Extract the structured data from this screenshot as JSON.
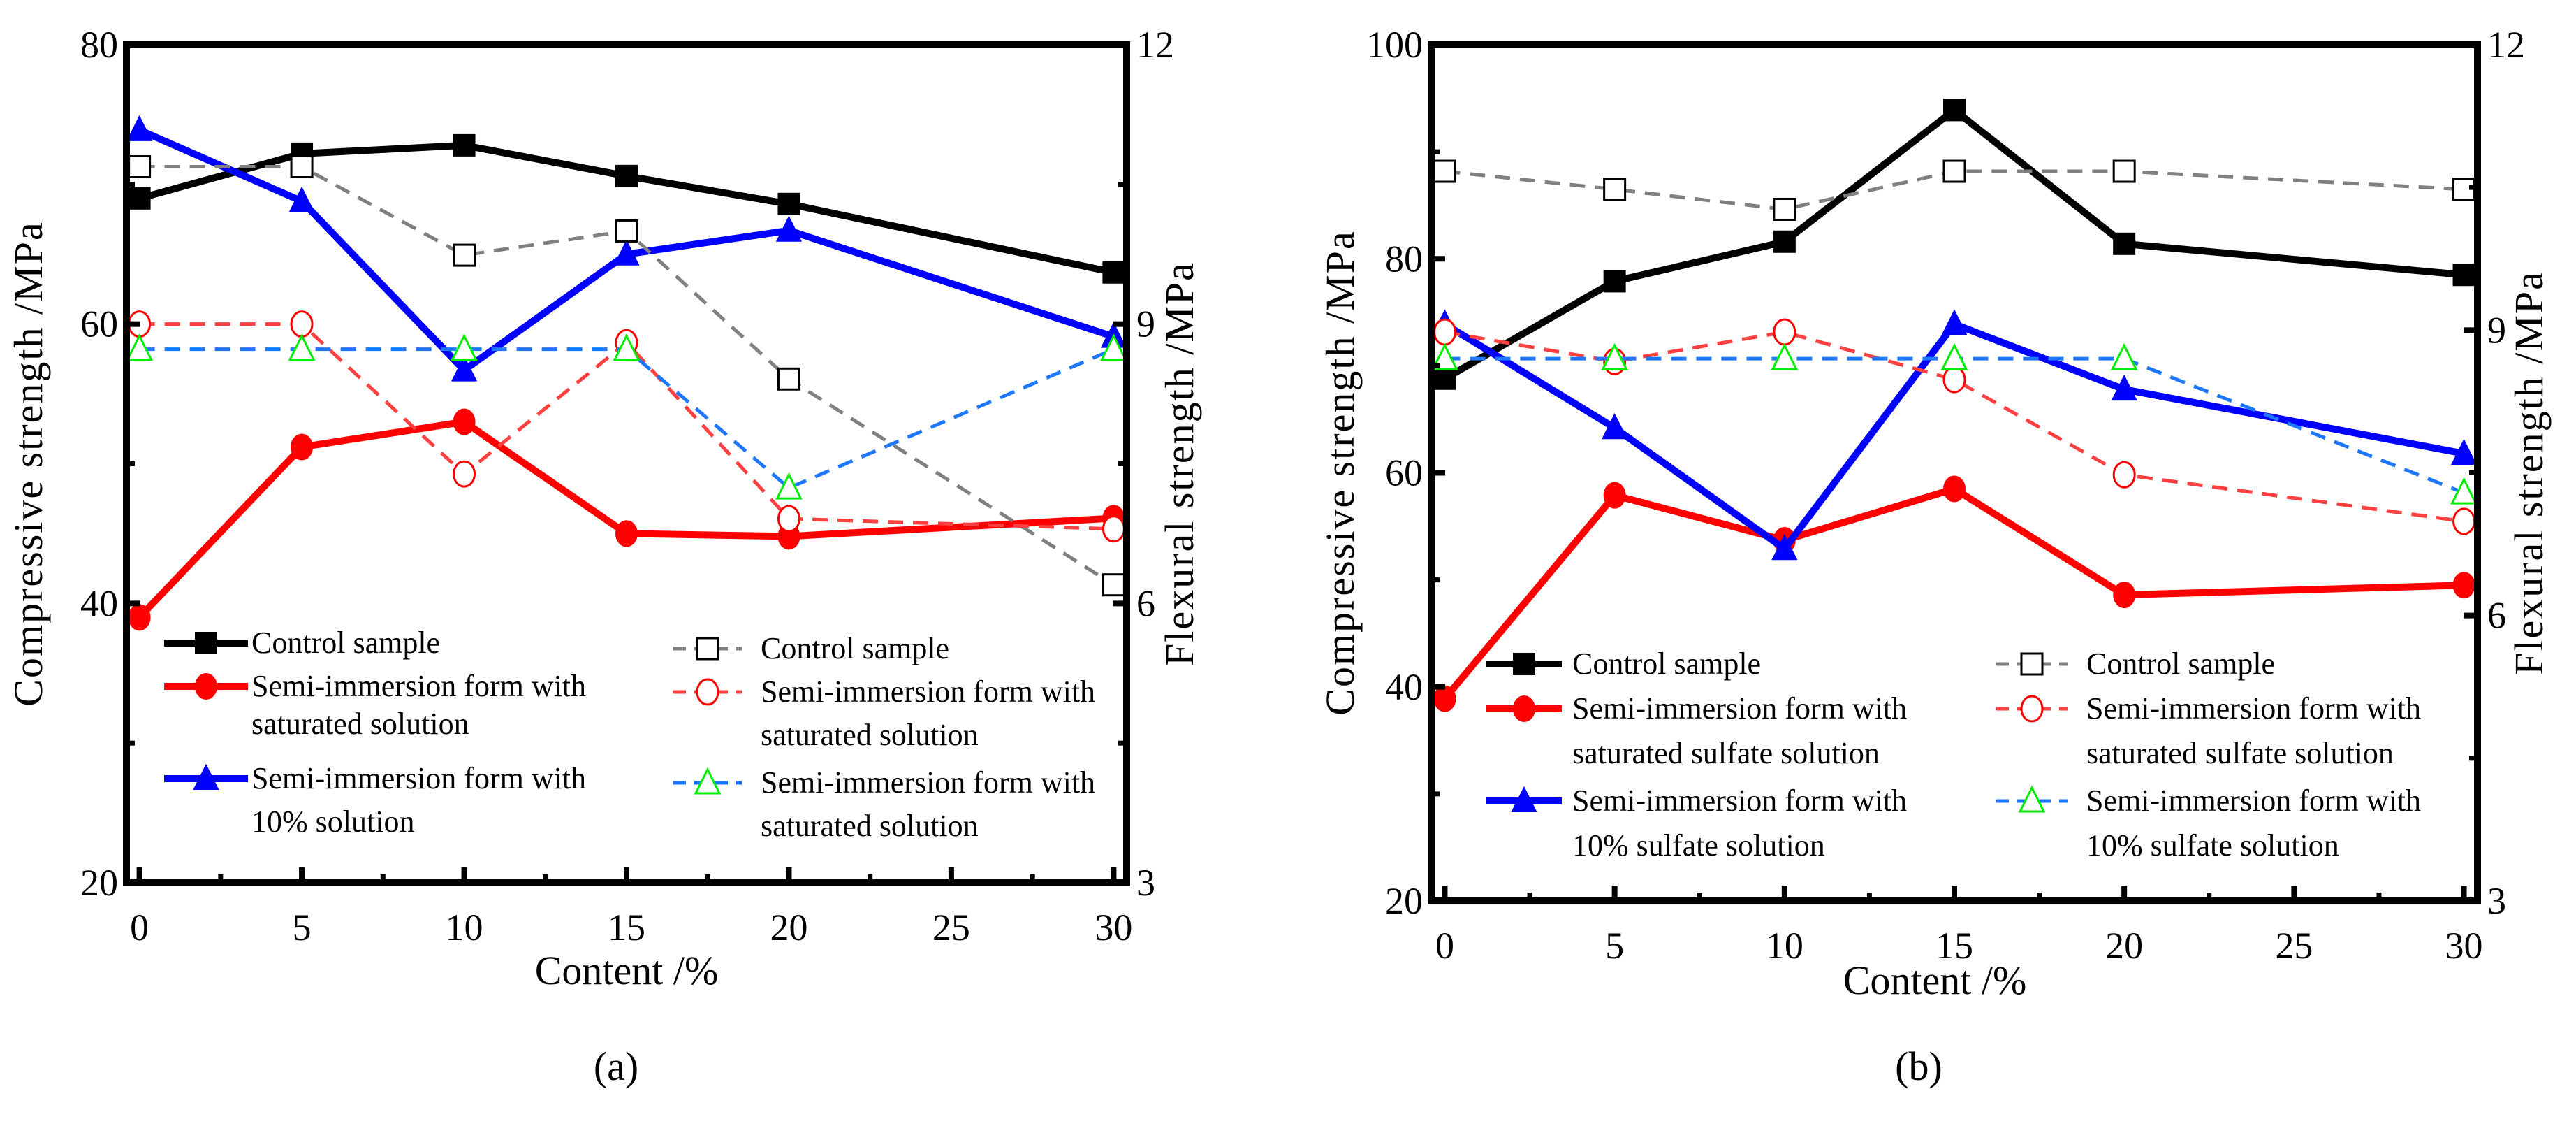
{
  "chart_data": [
    {
      "type": "line",
      "panel_label": "(a)",
      "xlabel": "Content  /%",
      "ylabel_left": "Compressive strength /MPa",
      "ylabel_right": "Flexural strength /MPa",
      "x": [
        0,
        5,
        10,
        15,
        20,
        30
      ],
      "xticks": [
        0,
        5,
        10,
        15,
        20,
        25,
        30
      ],
      "xlim": [
        -0.4,
        30.4
      ],
      "ylim_left": [
        20,
        80
      ],
      "yticks_left": [
        20,
        40,
        60,
        80
      ],
      "ylim_right": [
        3,
        12
      ],
      "yticks_right": [
        3,
        6,
        9,
        12
      ],
      "grid": false,
      "series": [
        {
          "name": "Control sample",
          "legend": [
            "Control sample"
          ],
          "axis": "left",
          "color": "#000000",
          "marker": "square-filled",
          "dash": false,
          "values": [
            69.0,
            72.2,
            72.8,
            70.6,
            68.6,
            63.7
          ]
        },
        {
          "name": "Semi-immersion form with saturated solution",
          "legend": [
            "Semi-immersion form with",
            " saturated solution"
          ],
          "axis": "left",
          "color": "#ff0000",
          "marker": "circle-filled",
          "dash": false,
          "values": [
            39.0,
            51.2,
            53.0,
            45.0,
            44.8,
            46.1
          ]
        },
        {
          "name": "Semi-immersion form with 10% solution",
          "legend": [
            "Semi-immersion form with",
            "10% solution"
          ],
          "axis": "left",
          "color": "#0000ff",
          "marker": "triangle-filled",
          "dash": false,
          "values": [
            73.9,
            68.8,
            56.7,
            65.0,
            66.7,
            59.1
          ]
        },
        {
          "name": "Control sample",
          "legend": [
            "Control sample"
          ],
          "axis": "right",
          "color": "#808080",
          "markerColor": "#000000",
          "marker": "square-open",
          "dash": true,
          "values": [
            10.69,
            10.69,
            9.74,
            10.0,
            8.41,
            6.2
          ]
        },
        {
          "name": "Semi-immersion form with saturated solution",
          "legend": [
            "Semi-immersion form with",
            "saturated solution"
          ],
          "axis": "right",
          "color": "#ff4040",
          "markerColor": "#ff0000",
          "marker": "circle-open",
          "dash": true,
          "values": [
            9.0,
            9.0,
            7.39,
            8.8,
            6.91,
            6.8
          ]
        },
        {
          "name": "Semi-immersion form with saturated solution",
          "legend": [
            "Semi-immersion form with",
            "saturated solution"
          ],
          "axis": "right",
          "color": "#1e78ff",
          "markerColor": "#00ee00",
          "marker": "triangle-open",
          "dash": true,
          "values": [
            8.73,
            8.73,
            8.73,
            8.73,
            7.24,
            8.73
          ]
        }
      ]
    },
    {
      "type": "line",
      "panel_label": "(b)",
      "xlabel": "Content  /%",
      "ylabel_left": "Compressive strength /MPa",
      "ylabel_right": "Flexural strength /MPa",
      "x": [
        0,
        5,
        10,
        15,
        20,
        30
      ],
      "xticks": [
        0,
        5,
        10,
        15,
        20,
        25,
        30
      ],
      "xlim": [
        -0.4,
        30.4
      ],
      "ylim_left": [
        20,
        100
      ],
      "yticks_left": [
        20,
        40,
        60,
        80,
        100
      ],
      "ylim_right": [
        3,
        12
      ],
      "yticks_right": [
        3,
        6,
        9,
        12
      ],
      "grid": false,
      "series": [
        {
          "name": "Control sample",
          "legend": [
            "Control sample"
          ],
          "axis": "left",
          "color": "#000000",
          "marker": "square-filled",
          "dash": false,
          "values": [
            68.8,
            77.9,
            81.6,
            93.9,
            81.4,
            78.5
          ]
        },
        {
          "name": "Semi-immersion form with saturated sulfate solution",
          "legend": [
            "Semi-immersion form with",
            "saturated sulfate solution"
          ],
          "axis": "left",
          "color": "#ff0000",
          "marker": "circle-filled",
          "dash": false,
          "values": [
            38.9,
            57.9,
            53.7,
            58.5,
            48.6,
            49.5
          ]
        },
        {
          "name": "Semi-immersion form with 10% sulfate solution",
          "legend": [
            "Semi-immersion form with",
            "10% sulfate solution"
          ],
          "axis": "left",
          "color": "#0000ff",
          "marker": "triangle-filled",
          "dash": false,
          "values": [
            73.9,
            64.2,
            52.9,
            73.9,
            67.8,
            61.8
          ]
        },
        {
          "name": "Control sample",
          "legend": [
            "Control sample"
          ],
          "axis": "right",
          "color": "#808080",
          "markerColor": "#000000",
          "marker": "square-open",
          "dash": true,
          "values": [
            10.67,
            10.48,
            10.27,
            10.67,
            10.67,
            10.48
          ]
        },
        {
          "name": "Semi-immersion form with saturated sulfate solution",
          "legend": [
            "Semi-immersion form with",
            "saturated sulfate solution"
          ],
          "axis": "right",
          "color": "#ff4040",
          "markerColor": "#ff0000",
          "marker": "circle-open",
          "dash": true,
          "values": [
            8.98,
            8.67,
            8.98,
            8.48,
            7.48,
            6.99
          ]
        },
        {
          "name": "Semi-immersion form with 10% sulfate solution",
          "legend": [
            "Semi-immersion form with",
            "10% sulfate solution"
          ],
          "axis": "right",
          "color": "#1e78ff",
          "markerColor": "#00ee00",
          "marker": "triangle-open",
          "dash": true,
          "values": [
            8.7,
            8.7,
            8.7,
            8.7,
            8.7,
            7.29
          ]
        }
      ]
    }
  ]
}
